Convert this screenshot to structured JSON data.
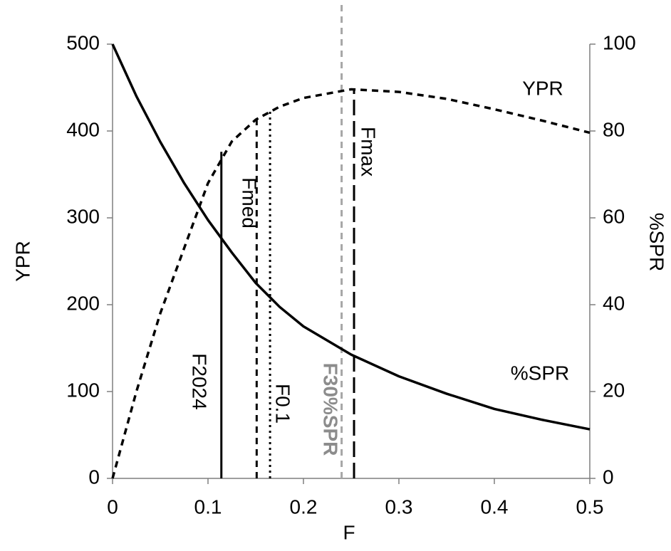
{
  "chart_data": {
    "type": "line",
    "x_label": "F",
    "y_label": "YPR",
    "y2_label": "%SPR",
    "x": [
      0,
      0.025,
      0.05,
      0.075,
      0.1,
      0.125,
      0.15,
      0.175,
      0.2,
      0.25,
      0.3,
      0.35,
      0.4,
      0.45,
      0.5
    ],
    "series": [
      {
        "name": "YPR",
        "color": "#000000",
        "style": "dash",
        "axis": "y",
        "values": [
          0,
          100,
          190,
          265,
          340,
          388,
          413,
          428,
          438,
          448,
          445,
          437,
          425,
          412,
          398
        ]
      },
      {
        "name": "%SPR",
        "color": "#000000",
        "style": "solid",
        "axis": "y2",
        "values": [
          100,
          88,
          77.5,
          68,
          59.5,
          52,
          45,
          39.5,
          35,
          28.5,
          23.5,
          19.5,
          16,
          13.5,
          11.3
        ]
      }
    ],
    "reference_lines": [
      {
        "name": "F2024",
        "x": 0.114,
        "y": 376,
        "style": "solid",
        "color": "#000000"
      },
      {
        "name": "Fmed",
        "x": 0.151,
        "y": 415,
        "style": "dash",
        "color": "#000000"
      },
      {
        "name": "F0.1",
        "x": 0.165,
        "y": 424,
        "style": "dot",
        "color": "#000000"
      },
      {
        "name": "F30%SPR",
        "x": 0.24,
        "y": 150,
        "style": "dash",
        "color": "#a6a6a6"
      },
      {
        "name": "Fmax",
        "x": 0.253,
        "y": 448,
        "style": "longdash",
        "color": "#000000"
      }
    ],
    "xlim": [
      0,
      0.5
    ],
    "xticks": [
      0,
      0.1,
      0.2,
      0.3,
      0.4,
      0.5
    ],
    "ylim": [
      0,
      500
    ],
    "yticks": [
      0,
      100,
      200,
      300,
      400,
      500
    ],
    "y2lim": [
      0,
      100
    ],
    "y2ticks": [
      0,
      20,
      40,
      60,
      80,
      100
    ]
  }
}
